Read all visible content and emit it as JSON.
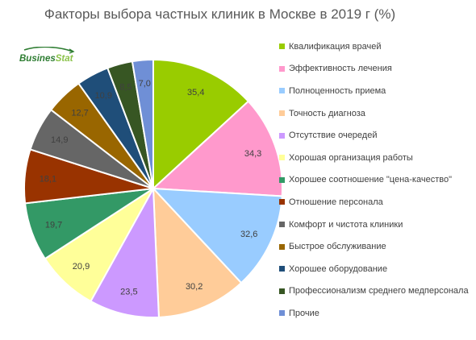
{
  "header": {
    "title": "Факторы выбора частных клиник в Москве в 2019 г (%)",
    "logo_text_a": "Busines",
    "logo_text_b": "Stat"
  },
  "chart_data": {
    "type": "pie",
    "title": "Факторы выбора частных клиник в Москве в 2019 г (%)",
    "legend_position": "right",
    "start_angle_deg": 0,
    "direction": "clockwise",
    "categories": [
      "Квалификация врачей",
      "Эффективность лечения",
      "Полноценность приема",
      "Точность диагноза",
      "Отсутствие очередей",
      "Хорошая организация работы",
      "Хорошее соотношение \"цена-качество\"",
      "Отношение персонала",
      "Комфорт и чистота клиники",
      "Быстрое обслуживание",
      "Хорошее оборудование",
      "Профессионализм среднего медперсонала",
      "Прочие"
    ],
    "values": [
      35.4,
      34.3,
      32.6,
      30.2,
      23.5,
      20.9,
      19.7,
      18.1,
      14.9,
      12.7,
      10.9,
      8.5,
      7.0
    ],
    "labels": [
      "35,4",
      "34,3",
      "32,6",
      "30,2",
      "23,5",
      "20,9",
      "19,7",
      "18,1",
      "14,9",
      "12,7",
      "10,9",
      "8,5",
      "7,0"
    ],
    "colors": [
      "#99cc00",
      "#ff99cc",
      "#99ccff",
      "#ffcc99",
      "#cc99ff",
      "#ffff99",
      "#339966",
      "#993300",
      "#666666",
      "#996600",
      "#1f4e79",
      "#375623",
      "#6f8fd6"
    ]
  }
}
